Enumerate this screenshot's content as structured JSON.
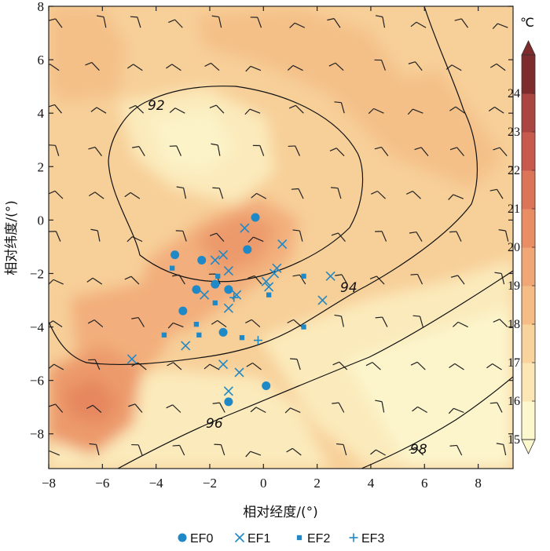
{
  "chart_data": {
    "type": "scatter",
    "xlabel": "相对经度/(°)",
    "ylabel": "相对纬度/(°)",
    "xlim": [
      -8,
      9.3
    ],
    "ylim": [
      -9.3,
      8
    ],
    "xticks": [
      "−8",
      "−6",
      "−4",
      "−2",
      "0",
      "2",
      "4",
      "6",
      "8"
    ],
    "yticks": [
      "−8",
      "−6",
      "−4",
      "−2",
      "0",
      "2",
      "4",
      "6",
      "8"
    ],
    "colorbar": {
      "unit": "℃",
      "min": 15,
      "max": 24,
      "ticks": [
        "15",
        "16",
        "17",
        "18",
        "19",
        "20",
        "21",
        "22",
        "23",
        "24"
      ],
      "colors": [
        "#fcf7cc",
        "#fbe6b4",
        "#f9d39c",
        "#f5bd85",
        "#f0a775",
        "#e98e64",
        "#dc7458",
        "#c75a4d",
        "#aa4542",
        "#7d2b2d"
      ]
    },
    "contour_labels": [
      "92",
      "94",
      "96",
      "98"
    ],
    "series": [
      {
        "name": "EF0",
        "marker": "circle",
        "points": [
          [
            -0.3,
            0.1
          ],
          [
            -3.3,
            -1.3
          ],
          [
            -2.3,
            -1.5
          ],
          [
            -0.6,
            -1.1
          ],
          [
            -1.8,
            -2.4
          ],
          [
            -2.5,
            -2.6
          ],
          [
            -1.3,
            -2.6
          ],
          [
            -3.0,
            -3.4
          ],
          [
            -1.5,
            -4.2
          ],
          [
            0.1,
            -6.2
          ],
          [
            -1.3,
            -6.8
          ]
        ]
      },
      {
        "name": "EF1",
        "marker": "x",
        "points": [
          [
            -0.7,
            -0.3
          ],
          [
            -1.5,
            -1.3
          ],
          [
            -1.8,
            -1.5
          ],
          [
            0.7,
            -0.9
          ],
          [
            -1.3,
            -1.9
          ],
          [
            0.5,
            -1.8
          ],
          [
            0.4,
            -2.0
          ],
          [
            0.1,
            -2.3
          ],
          [
            0.2,
            -2.5
          ],
          [
            2.5,
            -2.1
          ],
          [
            2.2,
            -3.0
          ],
          [
            -2.2,
            -2.8
          ],
          [
            -1.0,
            -2.8
          ],
          [
            -1.3,
            -3.3
          ],
          [
            -2.9,
            -4.7
          ],
          [
            -4.9,
            -5.2
          ],
          [
            -1.5,
            -5.4
          ],
          [
            -0.9,
            -5.7
          ],
          [
            -1.3,
            -6.4
          ]
        ]
      },
      {
        "name": "EF2",
        "marker": "square",
        "points": [
          [
            -3.4,
            -1.8
          ],
          [
            -1.7,
            -2.1
          ],
          [
            1.5,
            -2.1
          ],
          [
            0.2,
            -2.8
          ],
          [
            -1.8,
            -3.1
          ],
          [
            -2.5,
            -3.9
          ],
          [
            -3.7,
            -4.3
          ],
          [
            -2.4,
            -4.3
          ],
          [
            -0.8,
            -4.4
          ],
          [
            1.5,
            -4.0
          ]
        ]
      },
      {
        "name": "EF3",
        "marker": "plus",
        "points": [
          [
            -1.1,
            -2.9
          ],
          [
            -0.2,
            -4.5
          ]
        ]
      }
    ]
  }
}
